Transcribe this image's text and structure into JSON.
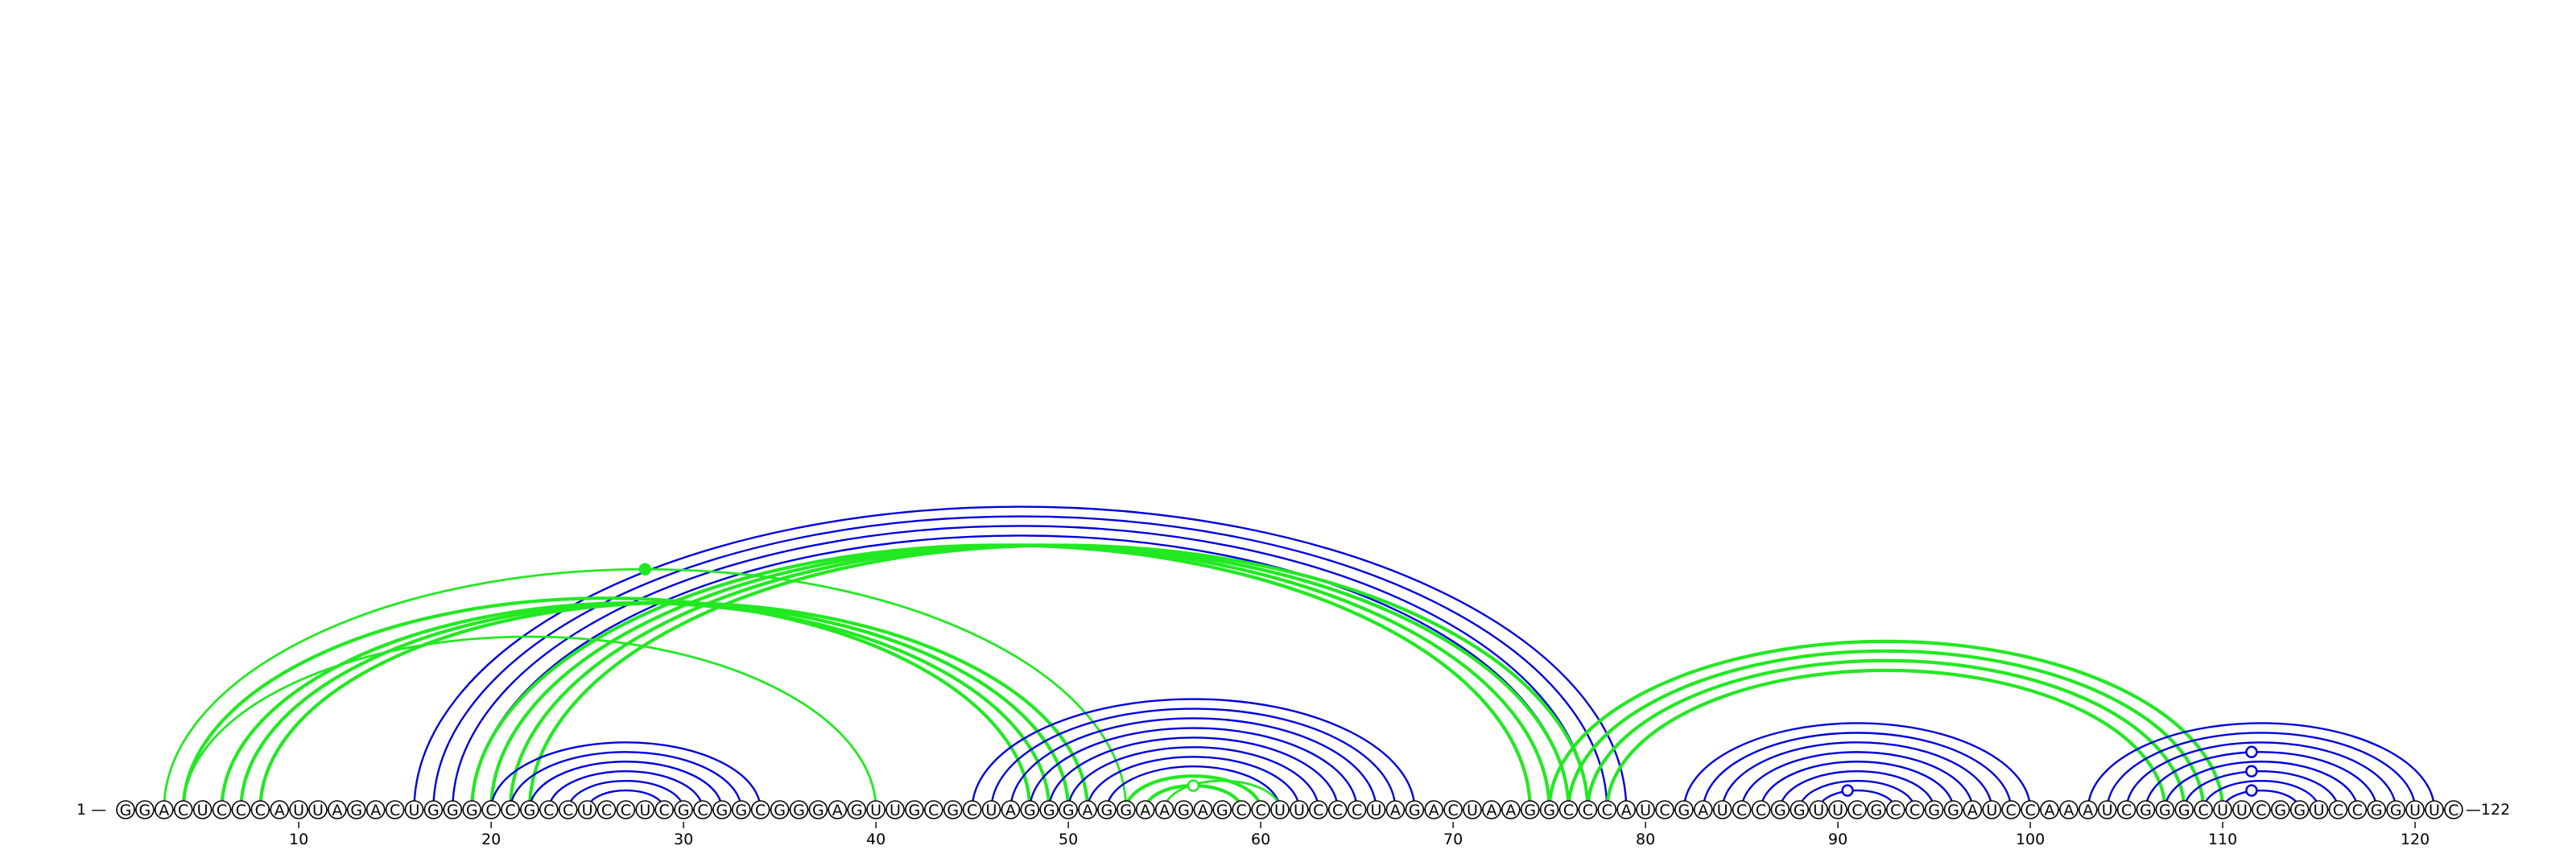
{
  "sequence": "GGACUCCCAUUAGACUGGGCCGCCUCCUCGCGGCGGGAGUUGCGCUAGGGAGGAAGAGCCUUCCCUAGACUAAGGCCCAUCGAUCCGGUUCGCCGGAUCCAAAUCGGGCUUCGGUCCGGUUC",
  "start_label": "1 —",
  "end_label": "—122",
  "ticks": [
    10,
    20,
    30,
    40,
    50,
    60,
    70,
    80,
    90,
    100,
    110,
    120
  ],
  "colors": {
    "blue": "#0000dd",
    "green": "#22e822"
  },
  "arc_groups": [
    {
      "color": "blue",
      "width": 2.4,
      "pairs": [
        [
          16,
          79
        ],
        [
          17,
          78
        ],
        [
          18,
          77
        ],
        [
          19,
          76
        ],
        [
          20,
          75
        ]
      ]
    },
    {
      "color": "green",
      "width": 4.2,
      "pairs": [
        [
          19,
          74
        ],
        [
          20,
          75
        ],
        [
          21,
          76
        ],
        [
          22,
          77
        ]
      ]
    },
    {
      "color": "green",
      "width": 4.2,
      "pairs": [
        [
          4,
          48
        ],
        [
          6,
          49
        ],
        [
          7,
          50
        ],
        [
          8,
          51
        ]
      ]
    },
    {
      "color": "green",
      "width": 2.8,
      "pairs": [
        [
          3,
          53
        ],
        [
          4,
          40
        ]
      ]
    },
    {
      "color": "blue",
      "width": 2.4,
      "pairs": [
        [
          20,
          34
        ],
        [
          21,
          33
        ],
        [
          22,
          32
        ],
        [
          23,
          31
        ],
        [
          24,
          30
        ],
        [
          25,
          29
        ]
      ]
    },
    {
      "color": "blue",
      "width": 2.4,
      "pairs": [
        [
          45,
          68
        ],
        [
          46,
          67
        ],
        [
          47,
          66
        ],
        [
          48,
          65
        ],
        [
          49,
          64
        ],
        [
          50,
          63
        ],
        [
          51,
          62
        ],
        [
          52,
          61
        ]
      ]
    },
    {
      "color": "green",
      "width": 4.2,
      "pairs": [
        [
          53,
          60
        ],
        [
          54,
          59
        ]
      ]
    },
    {
      "color": "green",
      "width": 2.8,
      "pairs": [
        [
          55,
          61
        ]
      ]
    },
    {
      "color": "green",
      "width": 4.2,
      "pairs": [
        [
          75,
          110
        ],
        [
          76,
          109
        ],
        [
          77,
          108
        ],
        [
          78,
          107
        ]
      ]
    },
    {
      "color": "blue",
      "width": 2.4,
      "pairs": [
        [
          82,
          100
        ],
        [
          83,
          99
        ],
        [
          84,
          98
        ],
        [
          85,
          97
        ],
        [
          86,
          96
        ],
        [
          87,
          95
        ],
        [
          88,
          94
        ],
        [
          89,
          93
        ]
      ]
    },
    {
      "color": "blue",
      "width": 2.4,
      "pairs": [
        [
          103,
          121
        ],
        [
          104,
          120
        ],
        [
          105,
          119
        ],
        [
          106,
          118
        ],
        [
          107,
          117
        ],
        [
          108,
          116
        ],
        [
          109,
          115
        ],
        [
          110,
          114
        ]
      ]
    }
  ],
  "markers": [
    {
      "position": 28,
      "color": "green",
      "filled": true
    },
    {
      "position": 56.5,
      "color": "green",
      "filled": false
    },
    {
      "position": 90.5,
      "color": "blue",
      "filled": false
    },
    {
      "position": 111.5,
      "color": "blue",
      "filled": false
    },
    {
      "position": 111.5,
      "color": "blue",
      "filled": false
    },
    {
      "position": 111.5,
      "color": "blue",
      "filled": false
    }
  ]
}
